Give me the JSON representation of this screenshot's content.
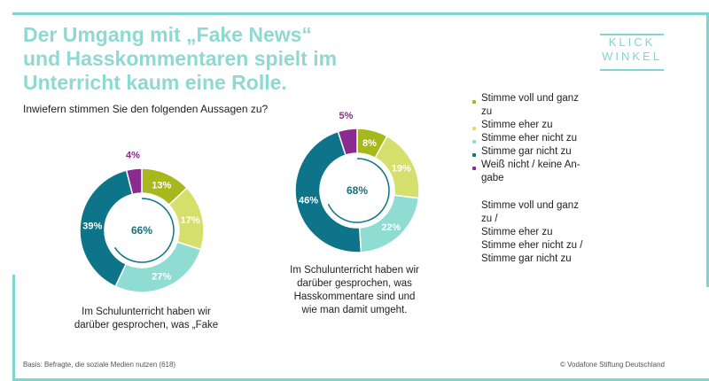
{
  "title_lines": [
    "Der Umgang mit „Fake News“",
    "und Hasskommentaren spielt im",
    "Unterricht kaum eine Rolle."
  ],
  "subtitle": "Inwiefern stimmen Sie den folgenden Aussagen zu?",
  "logo": {
    "line1": "KLICK",
    "line2": "WINKEL"
  },
  "colors": {
    "voll": "#a6b81c",
    "eher": "#d5e06c",
    "eher_nicht": "#8fdcd3",
    "gar_nicht": "#0d7489",
    "weiss_nicht": "#8b2a8f",
    "center_line": "#0d7489"
  },
  "chart_data": [
    {
      "type": "pie",
      "donut": true,
      "categories": [
        "Stimme voll und ganz zu",
        "Stimme eher zu",
        "Stimme eher nicht zu",
        "Stimme gar nicht zu",
        "Weiß nicht / keine Angabe"
      ],
      "values": [
        13,
        17,
        27,
        39,
        4
      ],
      "value_labels": [
        "13%",
        "17%",
        "27%",
        "39%",
        "4%"
      ],
      "center_value": 66,
      "center_label": "66%",
      "caption_lines": [
        "Im Schulunterricht haben wir",
        "darüber gesprochen, was „Fake"
      ]
    },
    {
      "type": "pie",
      "donut": true,
      "categories": [
        "Stimme voll und ganz zu",
        "Stimme eher zu",
        "Stimme eher nicht zu",
        "Stimme gar nicht zu",
        "Weiß nicht / keine Angabe"
      ],
      "values": [
        8,
        19,
        22,
        46,
        5
      ],
      "value_labels": [
        "8%",
        "19%",
        "22%",
        "46%",
        "5%"
      ],
      "center_value": 68,
      "center_label": "68%",
      "caption_lines": [
        "Im Schulunterricht haben wir",
        "darüber gesprochen, was",
        "Hasskommentare sind und",
        "wie man damit umgeht."
      ]
    }
  ],
  "legend": {
    "items": [
      {
        "lines": [
          "Stimme voll und ganz",
          "zu"
        ],
        "color_key": "voll"
      },
      {
        "lines": [
          "Stimme eher zu"
        ],
        "color_key": "eher"
      },
      {
        "lines": [
          "Stimme eher nicht zu"
        ],
        "color_key": "eher_nicht"
      },
      {
        "lines": [
          "Stimme gar nicht zu"
        ],
        "color_key": "gar_nicht"
      },
      {
        "lines": [
          "Weiß nicht / keine An-",
          "gabe"
        ],
        "color_key": "weiss_nicht"
      }
    ],
    "combined": [
      {
        "lines": [
          "Stimme voll und ganz",
          "zu /",
          "Stimme eher zu"
        ]
      },
      {
        "lines": [
          "Stimme eher nicht zu /",
          "Stimme gar nicht zu"
        ]
      }
    ]
  },
  "footer": {
    "left": "Basis: Befragte, die soziale Medien nutzen (618)",
    "right": "© Vodafone Stiftung Deutschland"
  }
}
